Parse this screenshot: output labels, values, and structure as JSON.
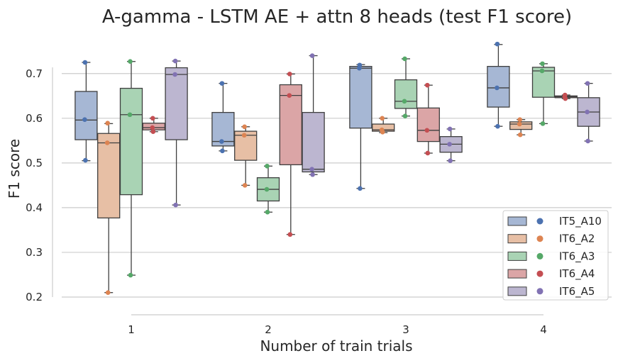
{
  "chart_data": {
    "type": "boxplot",
    "title": "A-gamma - LSTM AE + attn 8 heads (test F1 score)",
    "xlabel": "Number of train trials",
    "ylabel": "F1 score",
    "categories": [
      "1",
      "2",
      "3",
      "4"
    ],
    "ylim": [
      0.18,
      0.78
    ],
    "yticks": [
      "0.2",
      "0.3",
      "0.4",
      "0.5",
      "0.6",
      "0.7"
    ],
    "grid": "horizontal",
    "legend_position": "bottom-right",
    "series": [
      {
        "name": "IT5_A10",
        "box_color": "#a6b7d4",
        "point_color": "#4c72b0",
        "boxes": [
          {
            "whisker_low": 0.505,
            "q1": 0.552,
            "median": 0.596,
            "q3": 0.66,
            "whisker_high": 0.725,
            "points": [
              0.725,
              0.597,
              0.506
            ]
          },
          {
            "whisker_low": 0.527,
            "q1": 0.538,
            "median": 0.548,
            "q3": 0.613,
            "whisker_high": 0.678,
            "points": [
              0.678,
              0.548,
              0.527
            ]
          },
          {
            "whisker_low": 0.443,
            "q1": 0.578,
            "median": 0.712,
            "q3": 0.716,
            "whisker_high": 0.72,
            "points": [
              0.719,
              0.712,
              0.443
            ]
          },
          {
            "whisker_low": 0.582,
            "q1": 0.625,
            "median": 0.668,
            "q3": 0.716,
            "whisker_high": 0.765,
            "points": [
              0.766,
              0.668,
              0.582
            ]
          }
        ]
      },
      {
        "name": "IT6_A2",
        "box_color": "#e7bfa5",
        "point_color": "#dd8452",
        "boxes": [
          {
            "whisker_low": 0.21,
            "q1": 0.377,
            "median": 0.545,
            "q3": 0.566,
            "whisker_high": 0.588,
            "points": [
              0.589,
              0.545,
              0.21
            ]
          },
          {
            "whisker_low": 0.45,
            "q1": 0.506,
            "median": 0.562,
            "q3": 0.571,
            "whisker_high": 0.581,
            "points": [
              0.581,
              0.562,
              0.45
            ]
          },
          {
            "whisker_low": 0.568,
            "q1": 0.571,
            "median": 0.574,
            "q3": 0.587,
            "whisker_high": 0.6,
            "points": [
              0.6,
              0.574,
              0.569
            ]
          },
          {
            "whisker_low": 0.563,
            "q1": 0.575,
            "median": 0.587,
            "q3": 0.592,
            "whisker_high": 0.597,
            "points": [
              0.597,
              0.587,
              0.563
            ]
          }
        ]
      },
      {
        "name": "IT6_A3",
        "box_color": "#a9d3b4",
        "point_color": "#55a868",
        "boxes": [
          {
            "whisker_low": 0.249,
            "q1": 0.429,
            "median": 0.608,
            "q3": 0.667,
            "whisker_high": 0.727,
            "points": [
              0.727,
              0.608,
              0.249
            ]
          },
          {
            "whisker_low": 0.39,
            "q1": 0.415,
            "median": 0.441,
            "q3": 0.467,
            "whisker_high": 0.493,
            "points": [
              0.493,
              0.441,
              0.39
            ]
          },
          {
            "whisker_low": 0.605,
            "q1": 0.622,
            "median": 0.638,
            "q3": 0.686,
            "whisker_high": 0.733,
            "points": [
              0.733,
              0.638,
              0.605
            ]
          },
          {
            "whisker_low": 0.588,
            "q1": 0.647,
            "median": 0.706,
            "q3": 0.714,
            "whisker_high": 0.722,
            "points": [
              0.722,
              0.706,
              0.588
            ]
          }
        ]
      },
      {
        "name": "IT6_A4",
        "box_color": "#dba5a6",
        "point_color": "#c44e52",
        "boxes": [
          {
            "whisker_low": 0.57,
            "q1": 0.574,
            "median": 0.579,
            "q3": 0.589,
            "whisker_high": 0.6,
            "points": [
              0.6,
              0.579,
              0.57
            ]
          },
          {
            "whisker_low": 0.34,
            "q1": 0.496,
            "median": 0.651,
            "q3": 0.675,
            "whisker_high": 0.699,
            "points": [
              0.699,
              0.651,
              0.34
            ]
          },
          {
            "whisker_low": 0.522,
            "q1": 0.548,
            "median": 0.573,
            "q3": 0.623,
            "whisker_high": 0.674,
            "points": [
              0.674,
              0.573,
              0.522
            ]
          },
          {
            "whisker_low": 0.644,
            "q1": 0.646,
            "median": 0.648,
            "q3": 0.65,
            "whisker_high": 0.652,
            "points": [
              0.652,
              0.648,
              0.644
            ]
          }
        ]
      },
      {
        "name": "IT6_A5",
        "box_color": "#bcb6d0",
        "point_color": "#8172b3",
        "boxes": [
          {
            "whisker_low": 0.406,
            "q1": 0.552,
            "median": 0.698,
            "q3": 0.713,
            "whisker_high": 0.728,
            "points": [
              0.728,
              0.698,
              0.406
            ]
          },
          {
            "whisker_low": 0.474,
            "q1": 0.48,
            "median": 0.486,
            "q3": 0.613,
            "whisker_high": 0.74,
            "points": [
              0.74,
              0.486,
              0.474
            ]
          },
          {
            "whisker_low": 0.505,
            "q1": 0.524,
            "median": 0.542,
            "q3": 0.559,
            "whisker_high": 0.576,
            "points": [
              0.576,
              0.542,
              0.505
            ]
          },
          {
            "whisker_low": 0.549,
            "q1": 0.582,
            "median": 0.614,
            "q3": 0.646,
            "whisker_high": 0.678,
            "points": [
              0.678,
              0.614,
              0.549
            ]
          }
        ]
      }
    ]
  }
}
